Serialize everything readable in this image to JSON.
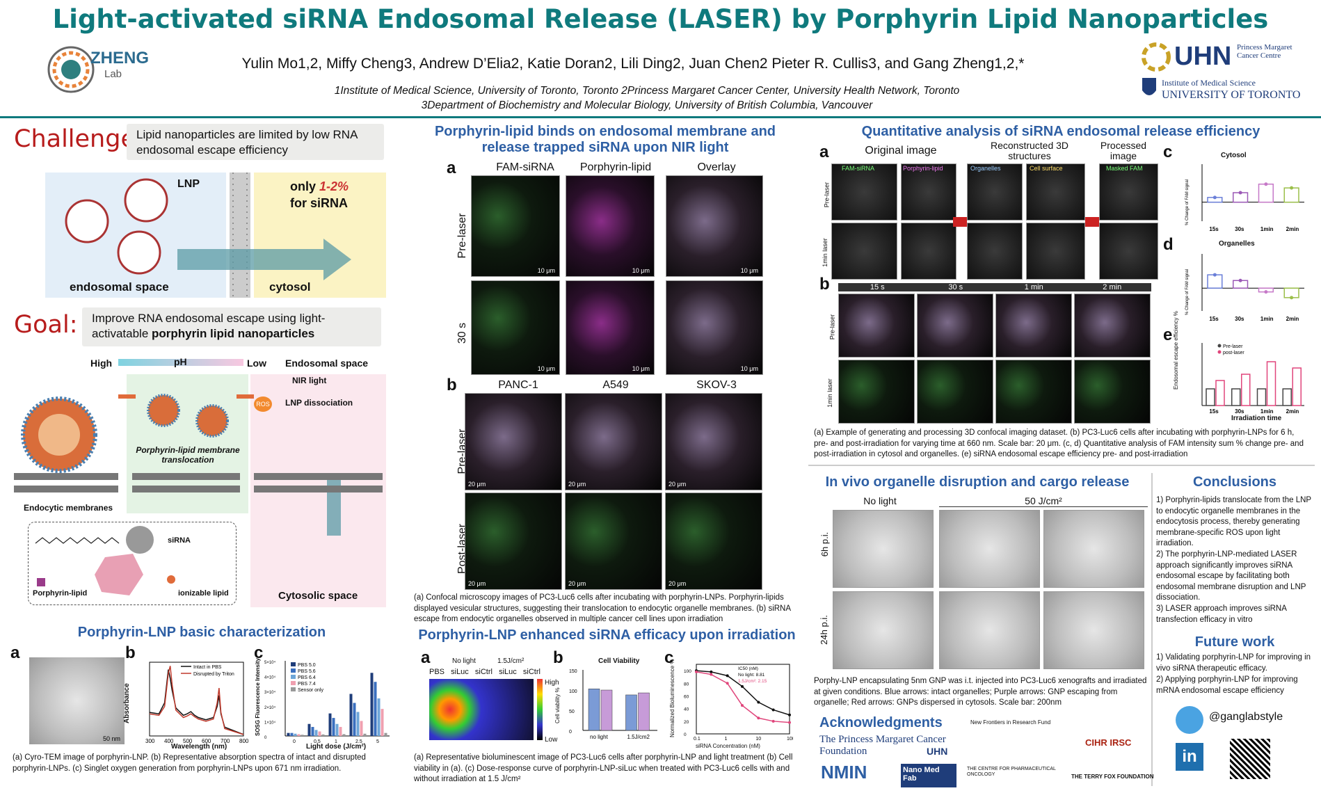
{
  "title": "Light-activated siRNA Endosomal Release (LASER) by Porphyrin Lipid Nanoparticles",
  "authors": "Yulin Mo1,2, Miffy Cheng3, Andrew D’Elia2, Katie Doran2, Lili Ding2, Juan Chen2 Pieter R. Cullis3, and Gang Zheng1,2,*",
  "affil1": "1Institute of Medical Science, University of Toronto, Toronto 2Princess Margaret Cancer Center, University Health Network, Toronto",
  "affil2": "3Department of Biochemistry and Molecular Biology, University of British Columbia, Vancouver",
  "logos": {
    "zheng": "ZHENG",
    "zheng_lab": "Lab",
    "uhn": "UHN",
    "uhn_sub": "Princess Margaret Cancer Centre",
    "ims": "Institute of Medical Science",
    "uoft": "UNIVERSITY OF TORONTO"
  },
  "left": {
    "challenge_label": "Challenge:",
    "challenge_text": "Lipid nanoparticles are limited by low RNA endosomal escape efficiency",
    "lnp": "LNP",
    "only": "only ",
    "only_pct": "1-2%",
    "for_sirna": "for siRNA",
    "endosomal_space": "endosomal space",
    "cytosol": "cytosol",
    "goal_label": "Goal:",
    "goal_text": "Improve RNA endosomal escape using light-activatable ",
    "goal_bold": "porphyrin lipid nanoparticles",
    "ph_high": "High",
    "ph": "pH",
    "ph_low": "Low",
    "endo_space": "Endosomal space",
    "nir": "NIR light",
    "lnp_diss": "LNP dissociation",
    "ros": "ROS",
    "translocation": "Porphyrin-lipid membrane translocation",
    "endocytic": "Endocytic membranes",
    "sirna": "siRNA",
    "porphyrin_lipid": "Porphyrin-lipid",
    "ionizable": "ionizable lipid",
    "cytosolic": "Cytosolic space",
    "char_title": "Porphyrin-LNP basic characterization",
    "char_a": "a",
    "char_b": "b",
    "char_c": "c",
    "scale_50": "50 nm",
    "abs_legend": [
      "Intact in PBS",
      "Disrupted by Triton"
    ],
    "abs_ylabel": "Absorbance",
    "abs_xlabel": "Wavelength (nm)",
    "abs_xticks": [
      "300",
      "400",
      "500",
      "600",
      "700",
      "800"
    ],
    "sosg_ylabel": "SOSG Fluorescence Intensity",
    "sosg_xlabel": "Light dose (J/cm²)",
    "sosg_yticks": [
      "5×10⁴",
      "4×10⁴",
      "3×10⁴",
      "2×10⁴",
      "1×10⁴",
      "0"
    ],
    "sosg_xticks": [
      "0",
      "0.5",
      "1",
      "2.5",
      "5"
    ],
    "sosg_legend": [
      "PBS 5.0",
      "PBS 5.6",
      "PBS 6.4",
      "PBS 7.4",
      "Sensor only"
    ],
    "char_cap": "(a) Cyro-TEM image of porphyrin-LNP. (b) Representative absorption spectra of intact and disrupted porphyrin-LNPs. (c) Singlet oxygen generation from porphyrin-LNPs upon 671 nm irradiation."
  },
  "mid": {
    "title": "Porphyrin-lipid binds on endosomal membrane and release trapped siRNA upon NIR light",
    "a": "a",
    "cols": [
      "FAM-siRNA",
      "Porphyrin-lipid",
      "Overlay"
    ],
    "rows": [
      "Pre-laser",
      "30 s"
    ],
    "scale": "10 μm",
    "b": "b",
    "cols_b": [
      "PANC-1",
      "A549",
      "SKOV-3"
    ],
    "rows_b": [
      "Pre-laser",
      "Post-laser"
    ],
    "scale_b": "20 μm",
    "cap": "(a) Confocal microscopy images of PC3-Luc6 cells after incubating with porphyrin-LNPs. Porphyrin-lipids displayed vesicular structures, suggesting their translocation to endocytic organelle membranes. (b) siRNA escape from endocytic organelles observed in multiple cancer cell lines upon irradiation",
    "eff_title": "Porphyrin-LNP enhanced siRNA efficacy upon irradiation",
    "ea": "a",
    "eb": "b",
    "ec": "c",
    "no_light": "No light",
    "dose": "1.5J/cm²",
    "wells": [
      "PBS",
      "siLuc",
      "siCtrl",
      "siLuc",
      "siCtrl"
    ],
    "high": "High",
    "low": "Low",
    "cv_title": "Cell Viability",
    "cv_ylabel": "Cell viability %",
    "cv_x": [
      "no light",
      "1.5J/cm2"
    ],
    "cv_yticks": [
      "150",
      "100",
      "50",
      "0"
    ],
    "dr_ylabel": "Normalized Bioluminescence %",
    "dr_xlabel": "siRNA Concentration (nM)",
    "dr_legend": [
      "IC50 (nM)",
      "No light: 8.81",
      "1.5J/cm²: 2.15"
    ],
    "dr_xticks": [
      "0.1",
      "1",
      "10",
      "100"
    ],
    "dr_yticks": [
      "100",
      "80",
      "60",
      "40",
      "20",
      "0"
    ],
    "eff_cap": "(a) Representative bioluminescent image of PC3-Luc6 cells after porphyrin-LNP and light treatment (b) Cell viability in (a). (c) Dose-response curve of porphyrin-LNP-siLuc when treated with PC3-Luc6 cells with and without irradiation at 1.5 J/cm²"
  },
  "right": {
    "title": "Quantitative analysis of siRNA endosomal release efficiency",
    "a": "a",
    "b": "b",
    "c": "c",
    "d": "d",
    "e": "e",
    "orig": "Original image",
    "recon": "Reconstructed 3D structures",
    "proc": "Processed image",
    "tags": [
      "FAM-siRNA",
      "Porphyrin-lipid",
      "Organelles",
      "Cell surface",
      "Masked FAM"
    ],
    "rows": [
      "Pre-laser",
      "1min laser"
    ],
    "times": [
      "15 s",
      "30 s",
      "1 min",
      "2 min"
    ],
    "cyto": "Cytosol",
    "org": "Organelles",
    "c_ylabel": "% Change of FAM signal",
    "times_short": [
      "15s",
      "30s",
      "1min",
      "2min"
    ],
    "e_ylabel": "Endosomal escape efficiency %",
    "e_xlabel": "Irradiation time",
    "e_legend": [
      "Pre-laser",
      "post-laser"
    ],
    "cap": "(a) Example of generating and processing 3D confocal imaging dataset. (b) PC3-Luc6 cells after incubating with porphyrin-LNPs for 6 h, pre- and post-irradiation for varying time at 660 nm. Scale bar: 20 μm. (c, d) Quantitative analysis of FAM intensity sum % change pre- and post-irradiation in cytosol and organelles. (e) siRNA endosomal escape efficiency pre- and post-irradiation",
    "invivo_title": "In vivo organelle disruption and cargo release",
    "no_light": "No light",
    "dose": "50 J/cm²",
    "rows_iv": [
      "6h p.i.",
      "24h p.i."
    ],
    "iv_cap": "Porphy-LNP encapsulating 5nm GNP was i.t. injected into PC3-Luc6 xenografts and irradiated at given conditions. Blue arrows: intact organelles; Purple arrows: GNP escaping from organelle; Red arrows: GNPs dispersed in cytosols. Scale bar: 200nm",
    "conc_title": "Conclusions",
    "conc": [
      "1) Porphyrin-lipids translocate from the LNP to endocytic organelle membranes in the endocytosis process, thereby generating membrane-specific ROS upon light irradiation.",
      "2) The porphyrin-LNP-mediated LASER approach significantly improves siRNA endosomal escape by facilitating both endosomal membrane disruption and LNP dissociation.",
      "3) LASER approach improves siRNA transfection efficacy in vitro"
    ],
    "future_title": "Future work",
    "future": [
      "1) Validating porphyrin-LNP for improving in vivo siRNA therapeutic efficacy.",
      "2) Applying porphyrin-LNP for improving mRNA endosomal escape efficiency"
    ],
    "ack_title": "Acknowledgments",
    "ack_pm": "The Princess Margaret Cancer Foundation",
    "ack_uhn": "UHN",
    "ack_nfrf": "New Frontiers in Research Fund",
    "ack_cihr": "CIHR IRSC",
    "ack_nmin": "NMIN",
    "ack_nano": "Nano Med Fab",
    "ack_cpo": "THE CENTRE FOR PHARMACEUTICAL ONCOLOGY",
    "ack_tf": "THE TERRY FOX FOUNDATION",
    "twitter": "@ganglabstyle",
    "linkedin": "in"
  },
  "chart_data": [
    {
      "type": "line",
      "title": "",
      "xlabel": "Wavelength (nm)",
      "ylabel": "Absorbance",
      "xlim": [
        300,
        800
      ],
      "series": [
        {
          "name": "Intact in PBS",
          "x": [
            300,
            350,
            380,
            400,
            410,
            420,
            440,
            480,
            500,
            520,
            540,
            560,
            600,
            640,
            660,
            670,
            680,
            700,
            800
          ],
          "y": [
            0.32,
            0.3,
            0.45,
            0.9,
            0.78,
            0.62,
            0.38,
            0.28,
            0.3,
            0.33,
            0.28,
            0.25,
            0.22,
            0.25,
            0.4,
            0.55,
            0.3,
            0.12,
            0.02
          ]
        },
        {
          "name": "Disrupted by Triton",
          "x": [
            300,
            350,
            380,
            400,
            410,
            420,
            440,
            480,
            500,
            520,
            540,
            560,
            600,
            640,
            660,
            670,
            680,
            700,
            800
          ],
          "y": [
            0.3,
            0.28,
            0.4,
            0.85,
            0.95,
            0.7,
            0.35,
            0.25,
            0.27,
            0.3,
            0.26,
            0.23,
            0.2,
            0.23,
            0.45,
            0.65,
            0.32,
            0.1,
            0.02
          ]
        }
      ]
    },
    {
      "type": "bar",
      "title": "",
      "xlabel": "Light dose (J/cm²)",
      "ylabel": "SOSG Fluorescence Intensity",
      "categories": [
        "0",
        "0.5",
        "1",
        "2.5",
        "5"
      ],
      "ylim": [
        0,
        50000
      ],
      "series": [
        {
          "name": "PBS 5.0",
          "values": [
            2000,
            8000,
            15000,
            28000,
            42000
          ]
        },
        {
          "name": "PBS 5.6",
          "values": [
            2000,
            6000,
            12000,
            22000,
            36000
          ]
        },
        {
          "name": "PBS 6.4",
          "values": [
            1500,
            4000,
            8000,
            16000,
            25000
          ]
        },
        {
          "name": "PBS 7.4",
          "values": [
            1200,
            3000,
            6000,
            10000,
            18000
          ]
        },
        {
          "name": "Sensor only",
          "values": [
            800,
            1000,
            1200,
            1500,
            2000
          ]
        }
      ]
    },
    {
      "type": "bar",
      "title": "Cell Viability",
      "ylabel": "Cell viability %",
      "categories": [
        "no light",
        "1.5J/cm2"
      ],
      "ylim": [
        0,
        150
      ],
      "series": [
        {
          "name": "siLuc",
          "values": [
            103,
            88
          ]
        },
        {
          "name": "siCtrl",
          "values": [
            100,
            93
          ]
        }
      ]
    },
    {
      "type": "line",
      "title": "",
      "xlabel": "siRNA Concentration (nM)",
      "ylabel": "Normalized Bioluminescence %",
      "xscale": "log",
      "ylim": [
        0,
        110
      ],
      "series": [
        {
          "name": "No light: 8.81",
          "x": [
            0.1,
            0.3,
            1,
            3,
            10,
            30,
            100
          ],
          "y": [
            100,
            98,
            92,
            75,
            50,
            38,
            30
          ]
        },
        {
          "name": "1.5J/cm²: 2.15",
          "x": [
            0.1,
            0.3,
            1,
            3,
            10,
            30,
            100
          ],
          "y": [
            98,
            94,
            80,
            45,
            25,
            20,
            18
          ]
        }
      ]
    },
    {
      "type": "scatter",
      "title": "Cytosol",
      "ylabel": "% Change of FAM signal",
      "categories": [
        "15s",
        "30s",
        "1min",
        "2min"
      ],
      "ylim": [
        -100,
        200
      ],
      "values": [
        25,
        50,
        95,
        75
      ]
    },
    {
      "type": "scatter",
      "title": "Organelles",
      "ylabel": "% Change of FAM signal",
      "categories": [
        "15s",
        "30s",
        "1min",
        "2min"
      ],
      "ylim": [
        -60,
        90
      ],
      "values": [
        35,
        20,
        -10,
        -25
      ]
    },
    {
      "type": "bar",
      "title": "",
      "xlabel": "Irradiation time",
      "ylabel": "Endosomal escape efficiency %",
      "categories": [
        "15s",
        "30s",
        "1min",
        "2min"
      ],
      "ylim": [
        0,
        3
      ],
      "series": [
        {
          "name": "Pre-laser",
          "values": [
            0.8,
            0.8,
            0.8,
            0.8
          ]
        },
        {
          "name": "post-laser",
          "values": [
            1.2,
            1.5,
            2.1,
            1.8
          ]
        }
      ]
    }
  ]
}
